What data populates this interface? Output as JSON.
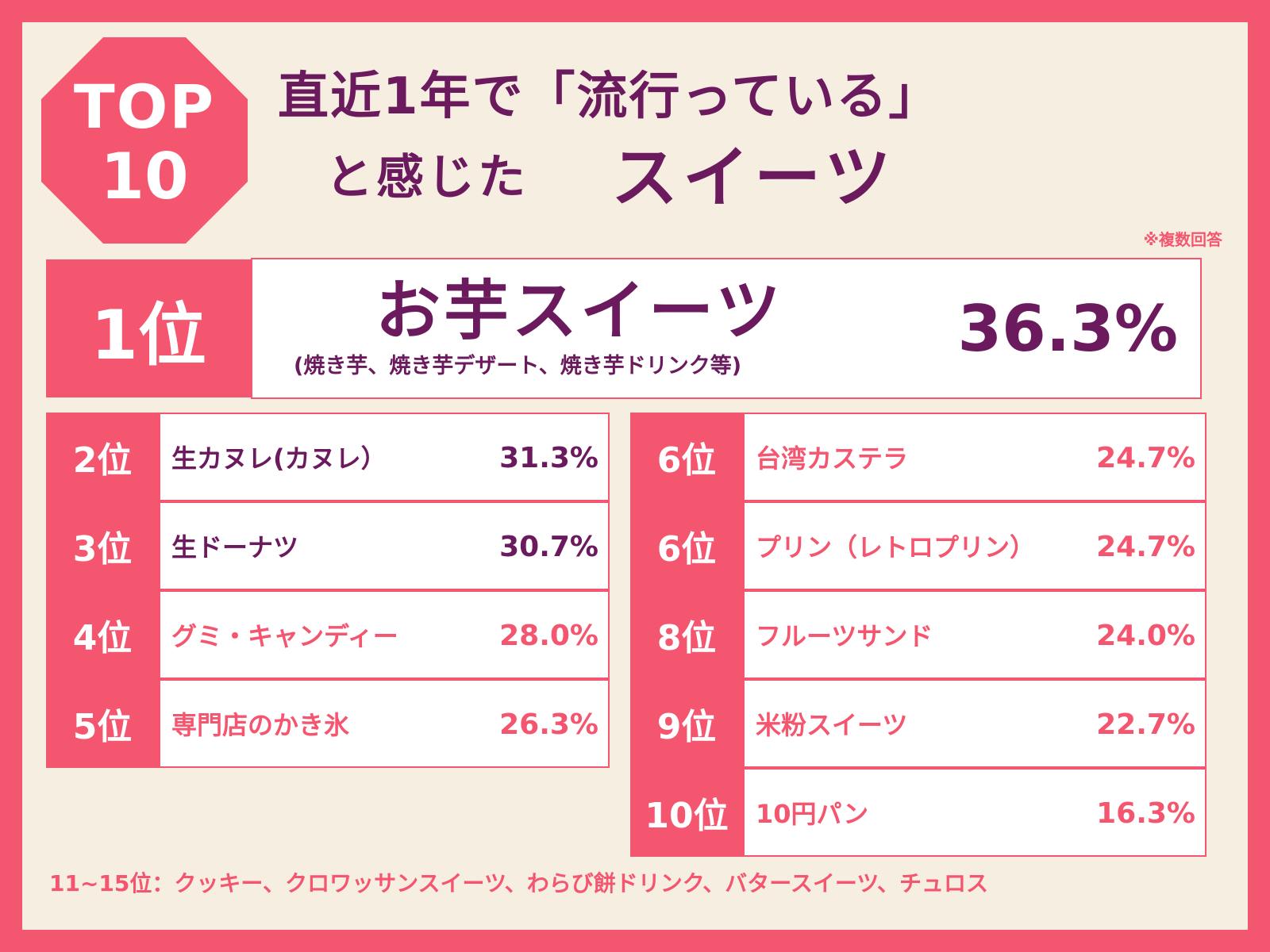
{
  "badge": {
    "line1": "TOP",
    "line2": "10"
  },
  "title": {
    "line1": "直近1年で「流行っている」",
    "line2": "と感じた",
    "highlight": "スイーツ"
  },
  "note": "※複数回答",
  "first": {
    "rank": "1位",
    "name": "お芋スイーツ",
    "sub": "(焼き芋、焼き芋デザート、焼き芋ドリンク等)",
    "pct": "36.3%"
  },
  "left_items": [
    {
      "rank": "2位",
      "name": "生カヌレ(カヌレ）",
      "pct": "31.3%"
    },
    {
      "rank": "3位",
      "name": "生ドーナツ",
      "pct": "30.7%"
    },
    {
      "rank": "4位",
      "name": "グミ・キャンディー",
      "pct": "28.0%"
    },
    {
      "rank": "5位",
      "name": "専門店のかき氷",
      "pct": "26.3%"
    }
  ],
  "right_items": [
    {
      "rank": "6位",
      "name": "台湾カステラ",
      "pct": "24.7%"
    },
    {
      "rank": "6位",
      "name": "プリン（レトロプリン）",
      "pct": "24.7%"
    },
    {
      "rank": "8位",
      "name": "フルーツサンド",
      "pct": "24.0%"
    },
    {
      "rank": "9位",
      "name": "米粉スイーツ",
      "pct": "22.7%"
    },
    {
      "rank": "10位",
      "name": "10円パン",
      "pct": "16.3%"
    }
  ],
  "footer": "11~15位：クッキー、クロワッサンスイーツ、わらび餅ドリンク、バタースイーツ、チュロス",
  "colors": {
    "accent": "#f5566f",
    "text": "#6b1a5e",
    "background": "#f6eee0"
  }
}
